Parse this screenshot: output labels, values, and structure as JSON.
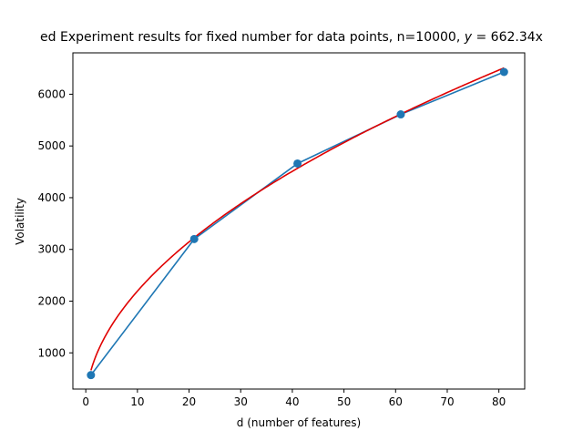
{
  "chart_data": {
    "type": "line",
    "title": "ed Experiment results for fixed number for data points, n=10000,",
    "title_math_y": "y",
    "title_math_rest": " = 662.34x",
    "xlabel": "d (number of features)",
    "ylabel": "Volatility",
    "xlim": [
      -2.5,
      85
    ],
    "ylim": [
      300,
      6800
    ],
    "x_ticks": [
      0,
      10,
      20,
      30,
      40,
      50,
      60,
      70,
      80
    ],
    "y_ticks": [
      1000,
      2000,
      3000,
      4000,
      5000,
      6000
    ],
    "grid": false,
    "series": [
      {
        "kind": "line-with-markers",
        "color": "#1f77b4",
        "x": [
          1,
          21,
          41,
          61,
          81
        ],
        "y": [
          570,
          3200,
          4660,
          5610,
          6430
        ]
      },
      {
        "kind": "fit-curve",
        "color": "#e00000",
        "coefficient": 662.34,
        "exponent": 0.52,
        "x_range": [
          1,
          81
        ]
      }
    ]
  }
}
